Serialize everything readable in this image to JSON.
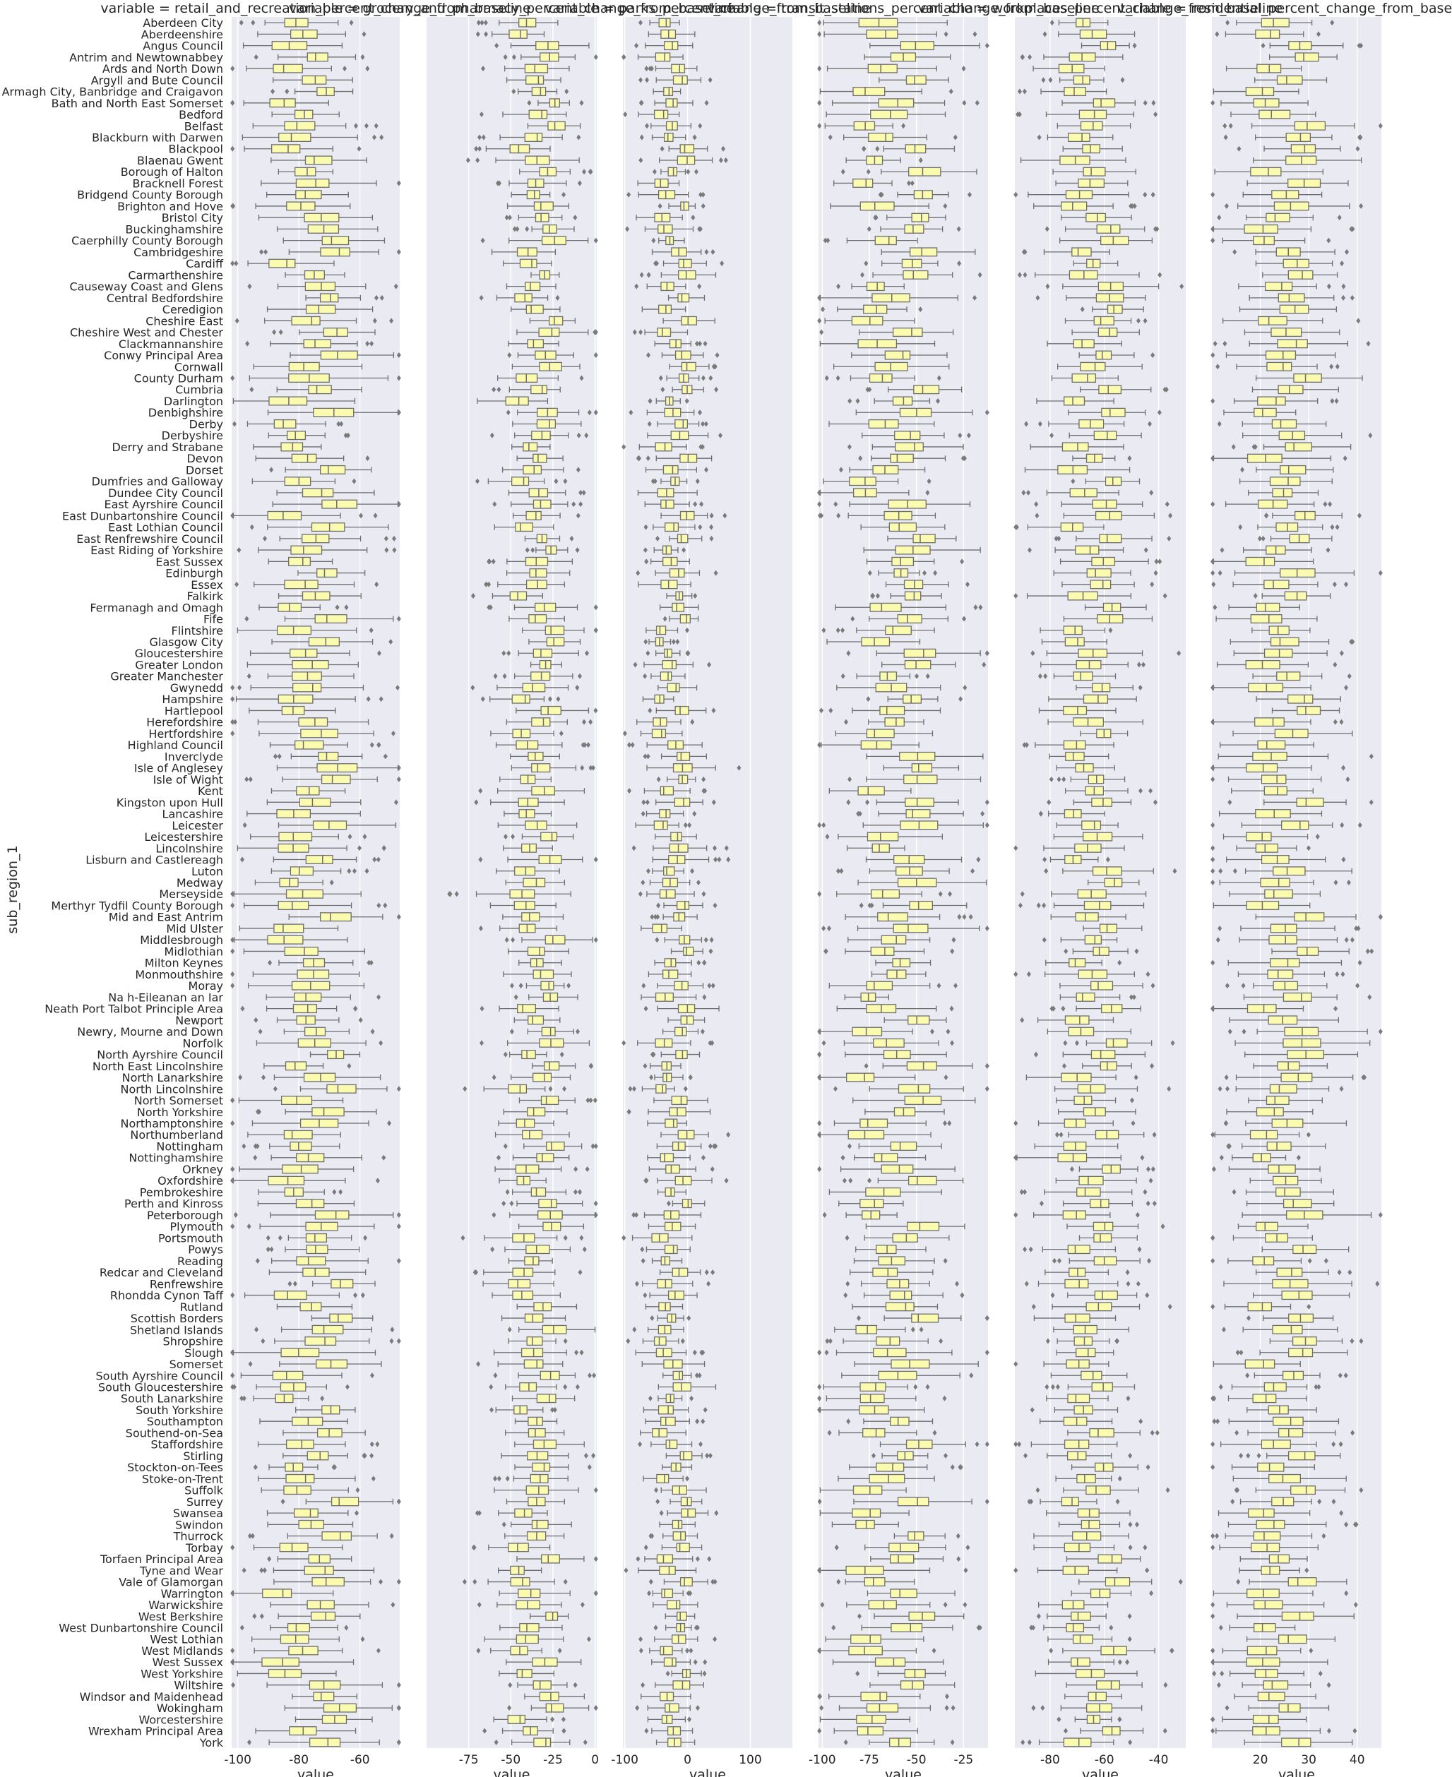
{
  "figure": {
    "ylabel": "sub_region_1",
    "colors": {
      "panel_bg": "#eaeaf2",
      "grid": "#ffffff",
      "box_fill": "#fbfbb0",
      "box_edge": "#6e6e6e",
      "outlier": "#7a7a7a",
      "text": "#262626"
    }
  },
  "chart_data": {
    "type": "box",
    "orientation": "horizontal",
    "grid": true,
    "categories": [
      "Aberdeen City",
      "Aberdeenshire",
      "Angus Council",
      "Antrim and Newtownabbey",
      "Ards and North Down",
      "Argyll and Bute Council",
      "Armagh City, Banbridge and Craigavon",
      "Bath and North East Somerset",
      "Bedford",
      "Belfast",
      "Blackburn with Darwen",
      "Blackpool",
      "Blaenau Gwent",
      "Borough of Halton",
      "Bracknell Forest",
      "Bridgend County Borough",
      "Brighton and Hove",
      "Bristol City",
      "Buckinghamshire",
      "Caerphilly County Borough",
      "Cambridgeshire",
      "Cardiff",
      "Carmarthenshire",
      "Causeway Coast and Glens",
      "Central Bedfordshire",
      "Ceredigion",
      "Cheshire East",
      "Cheshire West and Chester",
      "Clackmannanshire",
      "Conwy Principal Area",
      "Cornwall",
      "County Durham",
      "Cumbria",
      "Darlington",
      "Denbighshire",
      "Derby",
      "Derbyshire",
      "Derry and Strabane",
      "Devon",
      "Dorset",
      "Dumfries and Galloway",
      "Dundee City Council",
      "East Ayrshire Council",
      "East Dunbartonshire Council",
      "East Lothian Council",
      "East Renfrewshire Council",
      "East Riding of Yorkshire",
      "East Sussex",
      "Edinburgh",
      "Essex",
      "Falkirk",
      "Fermanagh and Omagh",
      "Fife",
      "Flintshire",
      "Glasgow City",
      "Gloucestershire",
      "Greater London",
      "Greater Manchester",
      "Gwynedd",
      "Hampshire",
      "Hartlepool",
      "Herefordshire",
      "Hertfordshire",
      "Highland Council",
      "Inverclyde",
      "Isle of Anglesey",
      "Isle of Wight",
      "Kent",
      "Kingston upon Hull",
      "Lancashire",
      "Leicester",
      "Leicestershire",
      "Lincolnshire",
      "Lisburn and Castlereagh",
      "Luton",
      "Medway",
      "Merseyside",
      "Merthyr Tydfil County Borough",
      "Mid and East Antrim",
      "Mid Ulster",
      "Middlesbrough",
      "Midlothian",
      "Milton Keynes",
      "Monmouthshire",
      "Moray",
      "Na h-Eileanan an Iar",
      "Neath Port Talbot Principle Area",
      "Newport",
      "Newry, Mourne and Down",
      "Norfolk",
      "North Ayrshire Council",
      "North East Lincolnshire",
      "North Lanarkshire",
      "North Lincolnshire",
      "North Somerset",
      "North Yorkshire",
      "Northamptonshire",
      "Northumberland",
      "Nottingham",
      "Nottinghamshire",
      "Orkney",
      "Oxfordshire",
      "Pembrokeshire",
      "Perth and Kinross",
      "Peterborough",
      "Plymouth",
      "Portsmouth",
      "Powys",
      "Reading",
      "Redcar and Cleveland",
      "Renfrewshire",
      "Rhondda Cynon Taff",
      "Rutland",
      "Scottish Borders",
      "Shetland Islands",
      "Shropshire",
      "Slough",
      "Somerset",
      "South Ayrshire Council",
      "South Gloucestershire",
      "South Lanarkshire",
      "South Yorkshire",
      "Southampton",
      "Southend-on-Sea",
      "Staffordshire",
      "Stirling",
      "Stockton-on-Tees",
      "Stoke-on-Trent",
      "Suffolk",
      "Surrey",
      "Swansea",
      "Swindon",
      "Thurrock",
      "Torbay",
      "Torfaen Principal Area",
      "Tyne and Wear",
      "Vale of Glamorgan",
      "Warrington",
      "Warwickshire",
      "West Berkshire",
      "West Dunbartonshire Council",
      "West Lothian",
      "West Midlands",
      "West Sussex",
      "West Yorkshire",
      "Wiltshire",
      "Windsor and Maidenhead",
      "Wokingham",
      "Worcestershire",
      "Wrexham Principal Area",
      "York"
    ],
    "panels": [
      {
        "title": "variable = retail_and_recreation_percent_change_from_baseline",
        "xlabel": "value",
        "xlim": [
          -102,
          -47
        ],
        "xticks": [
          -100,
          -80,
          -60
        ],
        "center": -76,
        "spread": 12,
        "seed": 11
      },
      {
        "title": "variable = grocery_and_pharmacy_percent_change_from_baseline",
        "xlabel": "value",
        "xlim": [
          -100,
          1
        ],
        "xticks": [
          -75,
          -50,
          -25,
          0
        ],
        "center": -35,
        "spread": 14,
        "seed": 23
      },
      {
        "title": "variable = parks_percent_change_from_baseline",
        "xlabel": "value",
        "xlim": [
          -103,
          167
        ],
        "xticks": [
          -100,
          0,
          100
        ],
        "center": -22,
        "spread": 30,
        "seed": 37
      },
      {
        "title": "variable = transit_stations_percent_change_from_baseline",
        "xlabel": "value",
        "xlim": [
          -102,
          -12
        ],
        "xticks": [
          -100,
          -75,
          -50,
          -25
        ],
        "center": -62,
        "spread": 20,
        "seed": 41
      },
      {
        "title": "variable = workplaces_percent_change_from_baseline",
        "xlabel": "value",
        "xlim": [
          -93,
          -30
        ],
        "xticks": [
          -80,
          -60,
          -40
        ],
        "center": -64,
        "spread": 10,
        "seed": 53
      },
      {
        "title": "variable = residential_percent_change_from_baseline",
        "xlabel": "value",
        "xlim": [
          10,
          45
        ],
        "xticks": [
          20,
          30,
          40
        ],
        "center": 25,
        "spread": 6,
        "seed": 67
      }
    ]
  }
}
